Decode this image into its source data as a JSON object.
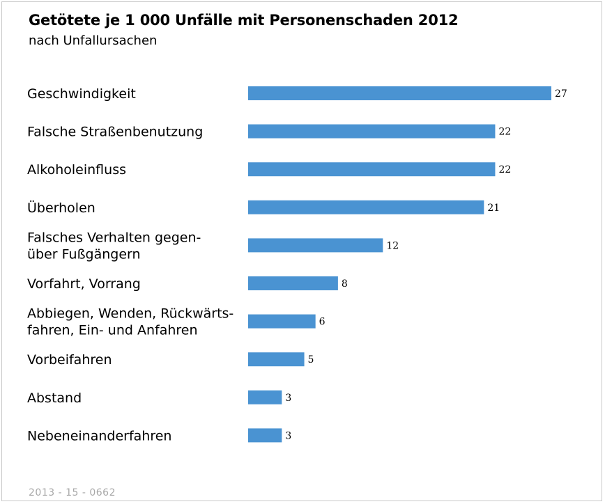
{
  "header": {
    "title": "Getötete je 1 000 Unfälle mit Personenschaden 2012",
    "subtitle": "nach Unfallursachen"
  },
  "footer": {
    "code": "2013 - 15 - 0662"
  },
  "colors": {
    "bar": "#4a93d2",
    "frame": "#c8c8c8",
    "footer_text": "#a8a8a8"
  },
  "chart_data": {
    "type": "bar",
    "orientation": "horizontal",
    "title": "Getötete je 1 000 Unfälle mit Personenschaden 2012",
    "subtitle": "nach Unfallursachen",
    "categories": [
      [
        "Geschwindigkeit"
      ],
      [
        "Falsche Straßenbenutzung"
      ],
      [
        "Alkoholeinfluss"
      ],
      [
        "Überholen"
      ],
      [
        "Falsches Verhalten gegen-",
        "über Fußgängern"
      ],
      [
        "Vorfahrt, Vorrang"
      ],
      [
        "Abbiegen, Wenden, Rückwärts-",
        "fahren, Ein- und Anfahren"
      ],
      [
        "Vorbeifahren"
      ],
      [
        "Abstand"
      ],
      [
        "Nebeneinanderfahren"
      ]
    ],
    "values": [
      27,
      22,
      22,
      21,
      12,
      8,
      6,
      5,
      3,
      3
    ],
    "xlim": [
      0,
      27
    ],
    "grid": false,
    "legend": "none"
  }
}
